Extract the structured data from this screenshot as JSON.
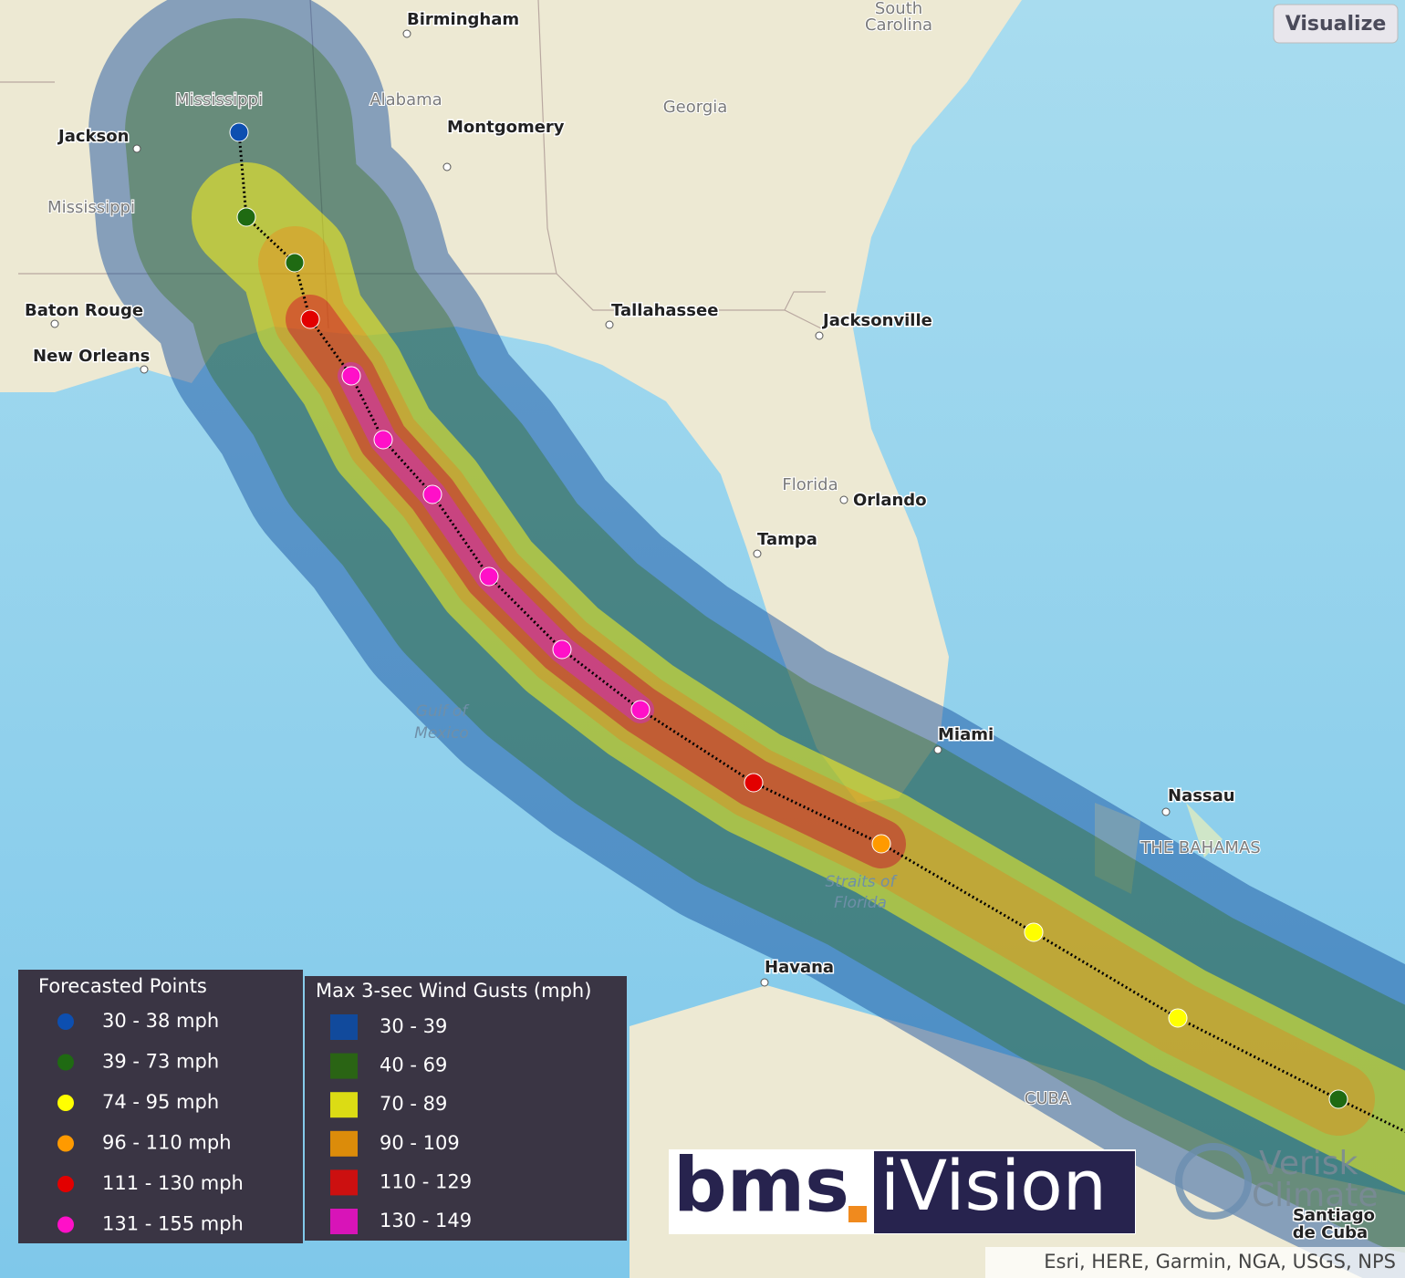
{
  "button": "Visualize",
  "places": [
    "Birmingham",
    "South",
    "Carolina",
    "Mississippi",
    "Alabama",
    "Jackson",
    "Montgomery",
    "Georgia",
    "Mississippi",
    "Baton Rouge",
    "New Orleans",
    "Tallahassee",
    "Jacksonville",
    "Florida",
    "Orlando",
    "Tampa",
    "Gulf of",
    "Mexico",
    "Miami",
    "Nassau",
    "THE BAHAMAS",
    "Straits of",
    "Florida",
    "Havana",
    "CUBA",
    "Santiago",
    "de Cuba"
  ],
  "legend_points": {
    "title": "Forecasted Points",
    "items": [
      {
        "label": "30 - 38 mph",
        "color": "#0d4fb0"
      },
      {
        "label": "39 - 73 mph",
        "color": "#1f6a12"
      },
      {
        "label": "74 - 95 mph",
        "color": "#ffff00"
      },
      {
        "label": "96 - 110 mph",
        "color": "#ff9a00"
      },
      {
        "label": "111 - 130 mph",
        "color": "#e20000"
      },
      {
        "label": "131 - 155 mph",
        "color": "#ff10c8"
      }
    ]
  },
  "legend_gusts": {
    "title": "Max 3-sec Wind Gusts (mph)",
    "items": [
      {
        "label": "30 - 39",
        "color": "#114a9c"
      },
      {
        "label": "40 - 69",
        "color": "#2a6414"
      },
      {
        "label": "70 - 89",
        "color": "#dcdc14"
      },
      {
        "label": "90 - 109",
        "color": "#dc8c0a"
      },
      {
        "label": "110 - 129",
        "color": "#cc1010"
      },
      {
        "label": "130 - 149",
        "color": "#d814b8"
      }
    ]
  },
  "logo": {
    "brand": "bms",
    "dot": ".",
    "product": "iVision"
  },
  "verisk": [
    "Verisk",
    "Climate"
  ],
  "attribution": "Esri, HERE, Garmin, NGA, USGS, NPS"
}
